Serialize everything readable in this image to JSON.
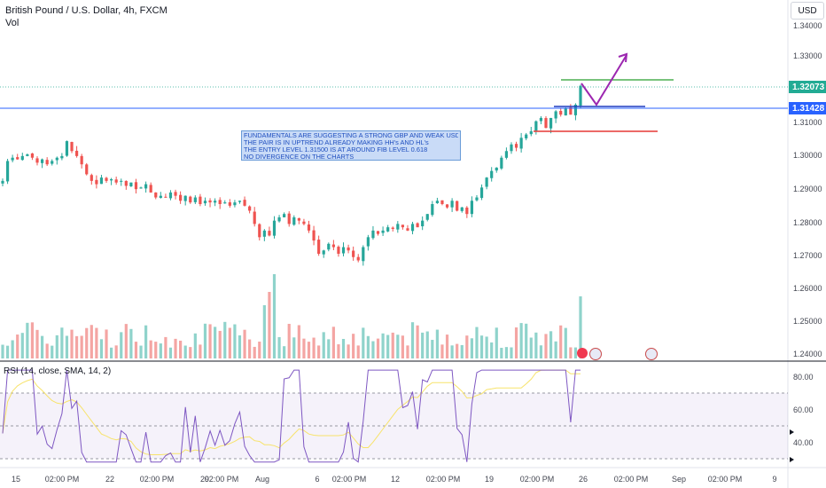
{
  "header": {
    "title": "British Pound / U.S. Dollar, 4h, FXCM",
    "volume_label": "Vol",
    "currency_button": "USD"
  },
  "price_axis": {
    "ticks": [
      "1.34000",
      "1.33000",
      "1.31000",
      "1.30000",
      "1.29000",
      "1.28000",
      "1.27000",
      "1.26000",
      "1.25000",
      "1.24000"
    ],
    "current_price": "1.32073",
    "entry_price": "1.31428",
    "current_color": "#22ab94",
    "entry_color": "#2962ff"
  },
  "rsi": {
    "label": "RSI (14, close, SMA, 14, 2)",
    "ticks": [
      "80.00",
      "60.00",
      "40.00"
    ],
    "line_color": "#7e57c2",
    "sma_color": "#f7e36b"
  },
  "time_axis": {
    "ticks": [
      "15",
      "02:00 PM",
      "22",
      "02:00 PM",
      "29",
      "02:00 PM",
      "Aug",
      "6",
      "02:00 PM",
      "12",
      "02:00 PM",
      "19",
      "02:00 PM",
      "26",
      "02:00 PM",
      "02:00 PM",
      "Sep",
      "02:00 PM",
      "9"
    ]
  },
  "annotation": {
    "lines": [
      "FUNDAMENTALS ARE SUGGESTING A STRONG GBP AND WEAK USD.",
      "THE PAIR IS IN UPTREND ALREADY MAKING HH's AND HL's",
      "THE ENTRY LEVEL 1.31500 IS AT AROUND FIB LEVEL 0.618",
      "NO DIVERGENCE ON THE CHARTS"
    ]
  },
  "levels": {
    "target": 1.322,
    "entry": 1.315,
    "stop": 1.3075
  },
  "colors": {
    "up": "#26a69a",
    "down": "#ef5350",
    "vol_up": "#8fd3cb",
    "vol_down": "#f4a5a3",
    "target_line": "#4caf50",
    "stop_line": "#e53935",
    "path": "#9c27b0"
  },
  "chart_data": {
    "type": "candlestick",
    "close_series": [
      1.292,
      1.298,
      1.299,
      1.2985,
      1.2995,
      1.3,
      1.299,
      1.2975,
      1.2985,
      1.297,
      1.298,
      1.299,
      1.2995,
      1.304,
      1.301,
      1.2995,
      1.297,
      1.294,
      1.292,
      1.291,
      1.293,
      1.292,
      1.2925,
      1.2915,
      1.292,
      1.2905,
      1.2915,
      1.2895,
      1.29,
      1.291,
      1.2885,
      1.287,
      1.2875,
      1.287,
      1.2885,
      1.2875,
      1.286,
      1.2875,
      1.2855,
      1.287,
      1.285,
      1.286,
      1.2855,
      1.286,
      1.285,
      1.2855,
      1.2845,
      1.2855,
      1.286,
      1.2845,
      1.283,
      1.279,
      1.275,
      1.277,
      1.2755,
      1.28,
      1.281,
      1.282,
      1.279,
      1.281,
      1.28,
      1.279,
      1.277,
      1.274,
      1.27,
      1.271,
      1.273,
      1.272,
      1.27,
      1.272,
      1.271,
      1.269,
      1.268,
      1.272,
      1.275,
      1.277,
      1.276,
      1.277,
      1.278,
      1.2775,
      1.279,
      1.278,
      1.277,
      1.279,
      1.278,
      1.28,
      1.282,
      1.285,
      1.286,
      1.285,
      1.284,
      1.286,
      1.283,
      1.284,
      1.282,
      1.286,
      1.287,
      1.29,
      1.293,
      1.295,
      1.296,
      1.299,
      1.301,
      1.303,
      1.302,
      1.305,
      1.306,
      1.307,
      1.31,
      1.311,
      1.308,
      1.311,
      1.313,
      1.312,
      1.314,
      1.312,
      1.315,
      1.3207
    ]
  }
}
